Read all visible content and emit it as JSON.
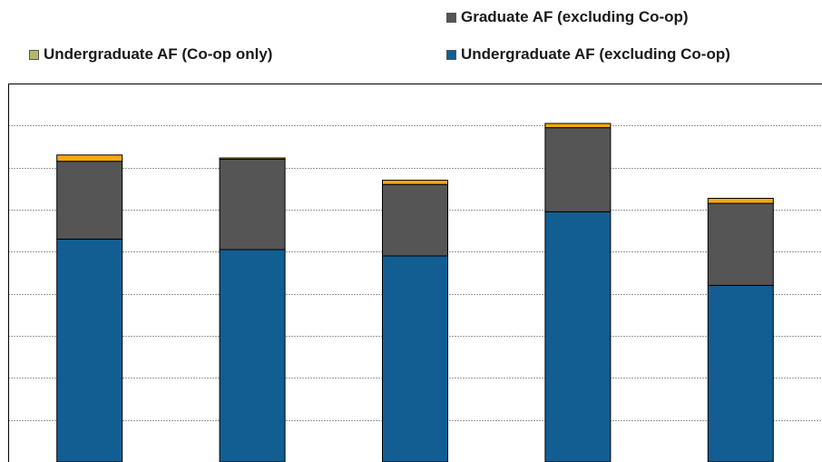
{
  "legend": {
    "graduate": "Graduate AF (excluding Co-op)",
    "ug_coop": "Undergraduate AF (Co-op only)",
    "ug_excl": "Undergraduate AF (excluding Co-op)"
  },
  "colors": {
    "ug_excl": "#125e92",
    "graduate": "#555555",
    "ug_coop": "#f5a815",
    "ug_coop_legend_swatch": "#b5b86a",
    "grid": "#9a9a9a",
    "axis": "#000000"
  },
  "chart_data": {
    "type": "bar",
    "stacked": true,
    "categories": [
      "",
      "",
      "",
      "",
      ""
    ],
    "series": [
      {
        "name": "Undergraduate AF (excluding Co-op)",
        "values": [
          5.3,
          5.05,
          4.9,
          5.95,
          4.2
        ]
      },
      {
        "name": "Graduate AF (excluding Co-op)",
        "values": [
          1.85,
          2.15,
          1.7,
          2.0,
          1.95
        ]
      },
      {
        "name": "Undergraduate AF (Co-op only)",
        "values": [
          0.15,
          0.03,
          0.1,
          0.1,
          0.12
        ]
      }
    ],
    "ylim": [
      0,
      9
    ],
    "y_gridline_step": 1,
    "grid": true,
    "legend_position": "top"
  }
}
